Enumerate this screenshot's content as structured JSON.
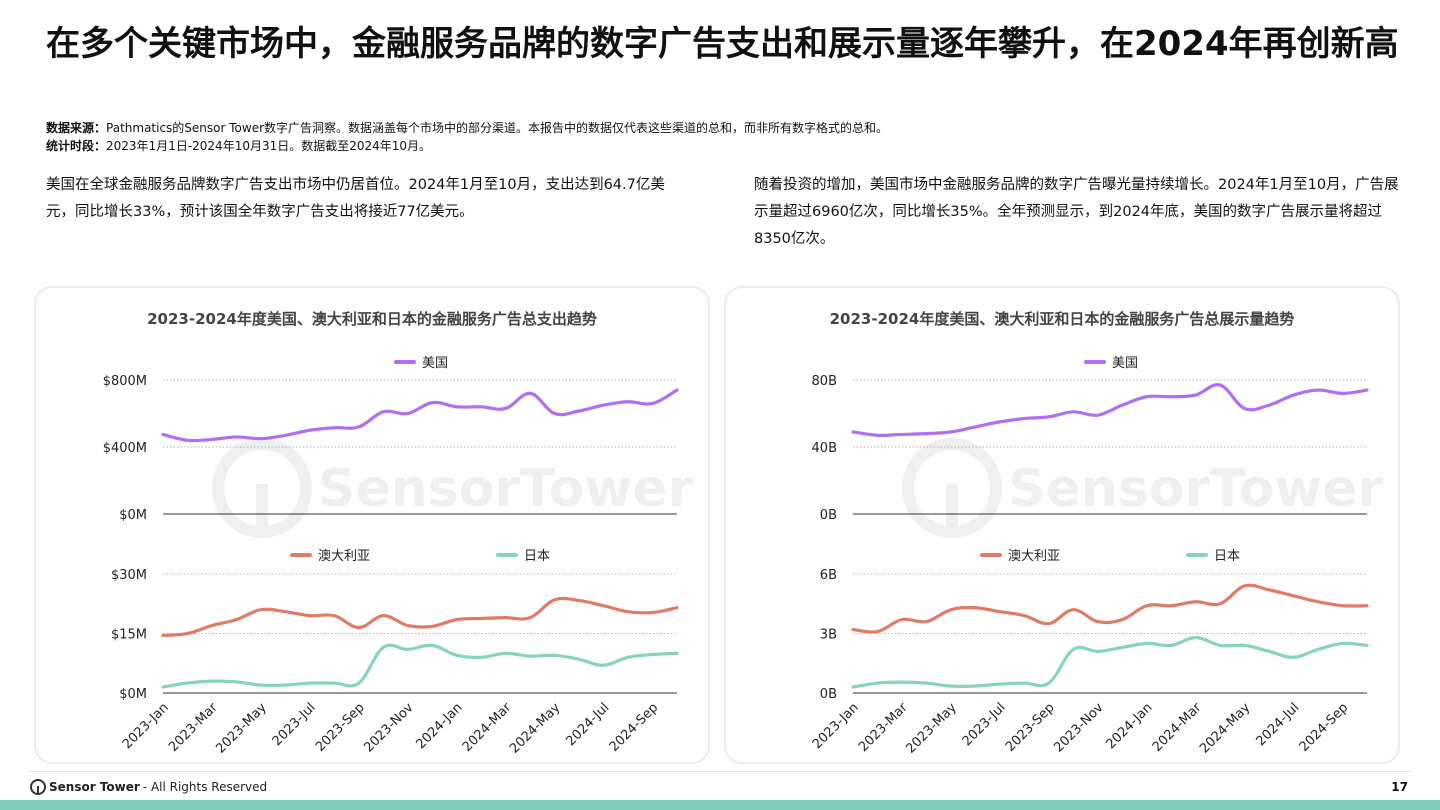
{
  "title": "在多个关键市场中，金融服务品牌的数字广告支出和展示量逐年攀升，在2024年再创新高",
  "source": {
    "label": "数据来源：",
    "text": "Pathmatics的Sensor Tower数字广告洞察。数据涵盖每个市场中的部分渠道。本报告中的数据仅代表这些渠道的总和，而非所有数字格式的总和。"
  },
  "period": {
    "label": "统计时段：",
    "text": "2023年1月1日-2024年10月31日。数据截至2024年10月。"
  },
  "paragraph_left": "美国在全球金融服务品牌数字广告支出市场中仍居首位。2024年1月至10月，支出达到64.7亿美元，同比增长33%，预计该国全年数字广告支出将接近77亿美元。",
  "paragraph_right": "随着投资的增加，美国市场中金融服务品牌的数字广告曝光量持续增长。2024年1月至10月，广告展示量超过6960亿次，同比增长35%。全年预测显示，到2024年底，美国的数字广告展示量将超过8350亿次。",
  "watermark": "SensorTower",
  "footer": {
    "brand": "Sensor Tower",
    "rights": "- All Rights Reserved",
    "page": "17"
  },
  "colors": {
    "us": "#b06ef0",
    "au": "#e07b66",
    "jp": "#86d3c0",
    "grid": "#9a9a9a",
    "bar": "#7ecbb9"
  },
  "chart_data": [
    {
      "type": "line",
      "title": "2023-2024年度美国、澳大利亚和日本的金融服务广告总支出趋势",
      "x": [
        "2023-Jan",
        "2023-Feb",
        "2023-Mar",
        "2023-Apr",
        "2023-May",
        "2023-Jun",
        "2023-Jul",
        "2023-Aug",
        "2023-Sep",
        "2023-Oct",
        "2023-Nov",
        "2023-Dec",
        "2024-Jan",
        "2024-Feb",
        "2024-Mar",
        "2024-Apr",
        "2024-May",
        "2024-Jun",
        "2024-Jul",
        "2024-Aug",
        "2024-Sep",
        "2024-Oct"
      ],
      "xticks": [
        "2023-Jan",
        "2023-Mar",
        "2023-May",
        "2023-Jul",
        "2023-Sep",
        "2023-Nov",
        "2024-Jan",
        "2024-Mar",
        "2024-May",
        "2024-Jul",
        "2024-Sep"
      ],
      "top": {
        "yticks": [
          "$800M",
          "$400M",
          "$0M"
        ],
        "ylim": [
          0,
          800
        ],
        "series": [
          {
            "name": "美国",
            "key": "us",
            "values": [
              475,
              440,
              445,
              460,
              450,
              470,
              500,
              515,
              520,
              610,
              600,
              665,
              640,
              640,
              630,
              720,
              600,
              615,
              650,
              670,
              660,
              740
            ]
          }
        ]
      },
      "bottom": {
        "yticks": [
          "$30M",
          "$15M",
          "$0M"
        ],
        "ylim": [
          0,
          30
        ],
        "series": [
          {
            "name": "澳大利亚",
            "key": "au",
            "values": [
              14.5,
              15,
              17,
              18.5,
              21,
              20.5,
              19.5,
              19.5,
              16.5,
              19.5,
              17,
              16.8,
              18.5,
              18.8,
              19,
              19,
              23.5,
              23.3,
              22,
              20.5,
              20.3,
              21.5
            ]
          },
          {
            "name": "日本",
            "key": "jp",
            "values": [
              1.5,
              2.5,
              3,
              2.8,
              2,
              2,
              2.5,
              2.5,
              2.5,
              11.5,
              11,
              12,
              9.5,
              9,
              10,
              9.3,
              9.5,
              8.5,
              7,
              9,
              9.7,
              10
            ]
          }
        ]
      }
    },
    {
      "type": "line",
      "title": "2023-2024年度美国、澳大利亚和日本的金融服务广告总展示量趋势",
      "x": [
        "2023-Jan",
        "2023-Feb",
        "2023-Mar",
        "2023-Apr",
        "2023-May",
        "2023-Jun",
        "2023-Jul",
        "2023-Aug",
        "2023-Sep",
        "2023-Oct",
        "2023-Nov",
        "2023-Dec",
        "2024-Jan",
        "2024-Feb",
        "2024-Mar",
        "2024-Apr",
        "2024-May",
        "2024-Jun",
        "2024-Jul",
        "2024-Aug",
        "2024-Sep",
        "2024-Oct"
      ],
      "xticks": [
        "2023-Jan",
        "2023-Mar",
        "2023-May",
        "2023-Jul",
        "2023-Sep",
        "2023-Nov",
        "2024-Jan",
        "2024-Mar",
        "2024-May",
        "2024-Jul",
        "2024-Sep"
      ],
      "top": {
        "yticks": [
          "80B",
          "40B",
          "0B"
        ],
        "ylim": [
          0,
          80
        ],
        "series": [
          {
            "name": "美国",
            "key": "us",
            "values": [
              49,
              47,
              47.5,
              48,
              49,
              52,
              55,
              57,
              58,
              61,
              59,
              65,
              70,
              70,
              71,
              77,
              63,
              65,
              71,
              74,
              72,
              74
            ]
          }
        ]
      },
      "bottom": {
        "yticks": [
          "6B",
          "3B",
          "0B"
        ],
        "ylim": [
          0,
          6
        ],
        "series": [
          {
            "name": "澳大利亚",
            "key": "au",
            "values": [
              3.2,
              3.1,
              3.7,
              3.6,
              4.2,
              4.3,
              4.1,
              3.9,
              3.5,
              4.2,
              3.6,
              3.7,
              4.4,
              4.4,
              4.6,
              4.5,
              5.4,
              5.2,
              4.9,
              4.6,
              4.4,
              4.4
            ]
          },
          {
            "name": "日本",
            "key": "jp",
            "values": [
              0.3,
              0.5,
              0.55,
              0.5,
              0.35,
              0.35,
              0.45,
              0.5,
              0.5,
              2.2,
              2.1,
              2.3,
              2.5,
              2.4,
              2.8,
              2.4,
              2.4,
              2.1,
              1.8,
              2.2,
              2.5,
              2.4
            ]
          }
        ]
      }
    }
  ]
}
